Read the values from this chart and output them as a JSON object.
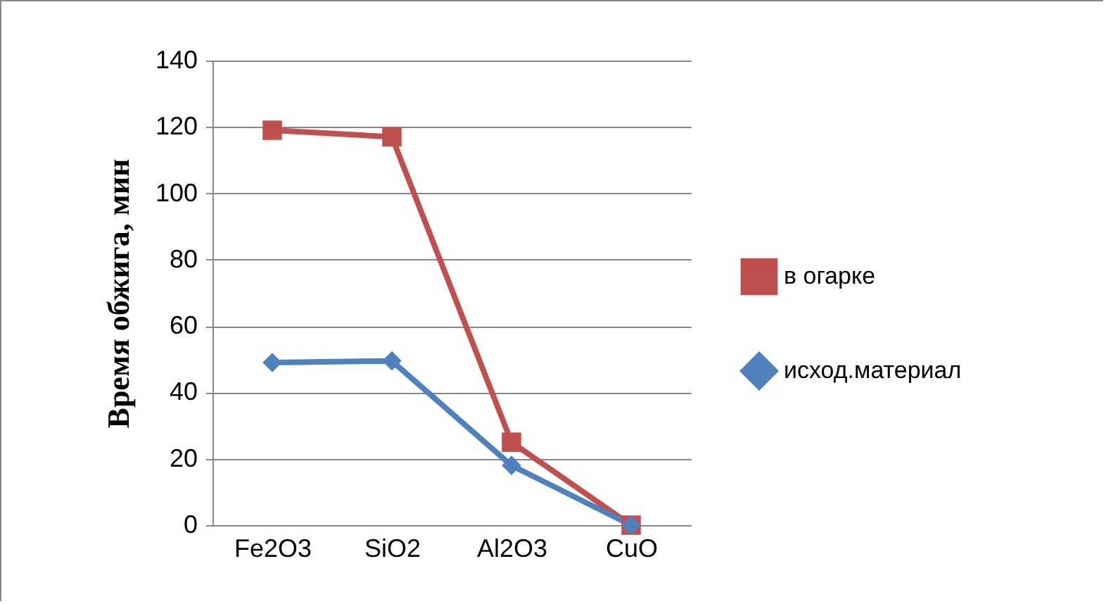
{
  "chart_data": {
    "type": "line",
    "ylabel": "Время обжига, мин",
    "categories": [
      "Fe2O3",
      "SiO2",
      "Al2O3",
      "CuO"
    ],
    "series": [
      {
        "name": "в огарке",
        "color": "#c0504d",
        "marker": "square",
        "values": [
          119,
          117,
          25,
          0
        ]
      },
      {
        "name": "исход.материал",
        "color": "#4f81bd",
        "marker": "diamond",
        "values": [
          49,
          49.5,
          18,
          0
        ]
      }
    ],
    "ylim": [
      0,
      140
    ],
    "yticks": [
      0,
      20,
      40,
      60,
      80,
      100,
      120,
      140
    ],
    "grid": "y",
    "legend": "right",
    "line_style": "solid"
  }
}
